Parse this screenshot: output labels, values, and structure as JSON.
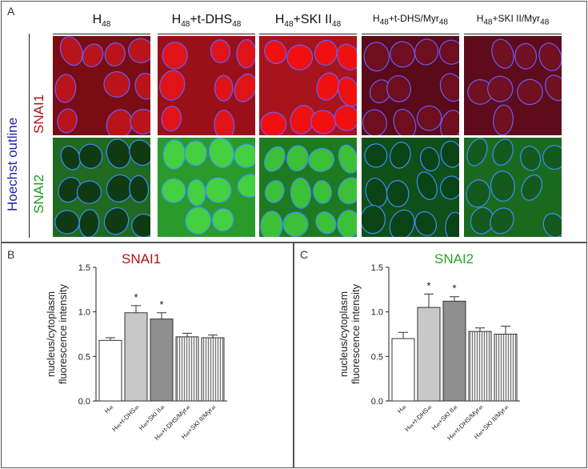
{
  "panel_a": {
    "label": "A",
    "columns": [
      {
        "base": "H",
        "sub1": "48",
        "rest": "",
        "sub2": ""
      },
      {
        "base": "H",
        "sub1": "48",
        "rest": "+t-DHS",
        "sub2": "48"
      },
      {
        "base": "H",
        "sub1": "48",
        "rest": "+SKI II",
        "sub2": "48"
      },
      {
        "base": "H",
        "sub1": "48",
        "rest": "+t-DHS/Myr",
        "sub2": "48"
      },
      {
        "base": "H",
        "sub1": "48",
        "rest": "+SKI II/Myr",
        "sub2": "48"
      }
    ],
    "row_side_label": "Hoechst outline",
    "rows": [
      "SNAI1",
      "SNAI2"
    ],
    "colors": {
      "snai1": "#b01010",
      "snai2": "#1a9e1a",
      "hoechst": "#2323a8"
    }
  },
  "chart_data": [
    {
      "panel_label": "B",
      "type": "bar",
      "title": "SNAI1",
      "title_color": "#b01010",
      "ylabel_lines": [
        "nucleus/cytoplasm",
        "fluorescence intensity"
      ],
      "ylim": [
        0,
        1.5
      ],
      "yticks": [
        "0.0",
        "0.5",
        "1.0",
        "1.5"
      ],
      "categories": [
        {
          "b": "H",
          "s1": "48",
          "r": "",
          "s2": ""
        },
        {
          "b": "H",
          "s1": "48",
          "r": "+t-DHS",
          "s2": "48"
        },
        {
          "b": "H",
          "s1": "48",
          "r": "+SKI II",
          "s2": "48"
        },
        {
          "b": "H",
          "s1": "48",
          "r": "+t-DHS/Myr",
          "s2": "48"
        },
        {
          "b": "H",
          "s1": "48",
          "r": "+SKI II/Myr",
          "s2": "48"
        }
      ],
      "values": [
        0.68,
        0.99,
        0.92,
        0.72,
        0.71
      ],
      "errors": [
        0.03,
        0.08,
        0.07,
        0.04,
        0.03
      ],
      "significance": [
        "",
        "*",
        "*",
        "",
        ""
      ]
    },
    {
      "panel_label": "C",
      "type": "bar",
      "title": "SNAI2",
      "title_color": "#22a822",
      "ylabel_lines": [
        "nucleus/cytoplasm",
        "fluorescence intensity"
      ],
      "ylim": [
        0,
        1.5
      ],
      "yticks": [
        "0.0",
        "0.5",
        "1.0",
        "1.5"
      ],
      "categories": [
        {
          "b": "H",
          "s1": "48",
          "r": "",
          "s2": ""
        },
        {
          "b": "H",
          "s1": "48",
          "r": "+t-DHS",
          "s2": "48"
        },
        {
          "b": "H",
          "s1": "48",
          "r": "+SKI II",
          "s2": "48"
        },
        {
          "b": "H",
          "s1": "48",
          "r": "+t-DHS/Myr",
          "s2": "48"
        },
        {
          "b": "H",
          "s1": "48",
          "r": "+SKI II/Myr",
          "s2": "48"
        }
      ],
      "values": [
        0.7,
        1.05,
        1.12,
        0.78,
        0.75
      ],
      "errors": [
        0.07,
        0.15,
        0.05,
        0.04,
        0.09
      ],
      "significance": [
        "",
        "*",
        "*",
        "",
        ""
      ]
    }
  ]
}
